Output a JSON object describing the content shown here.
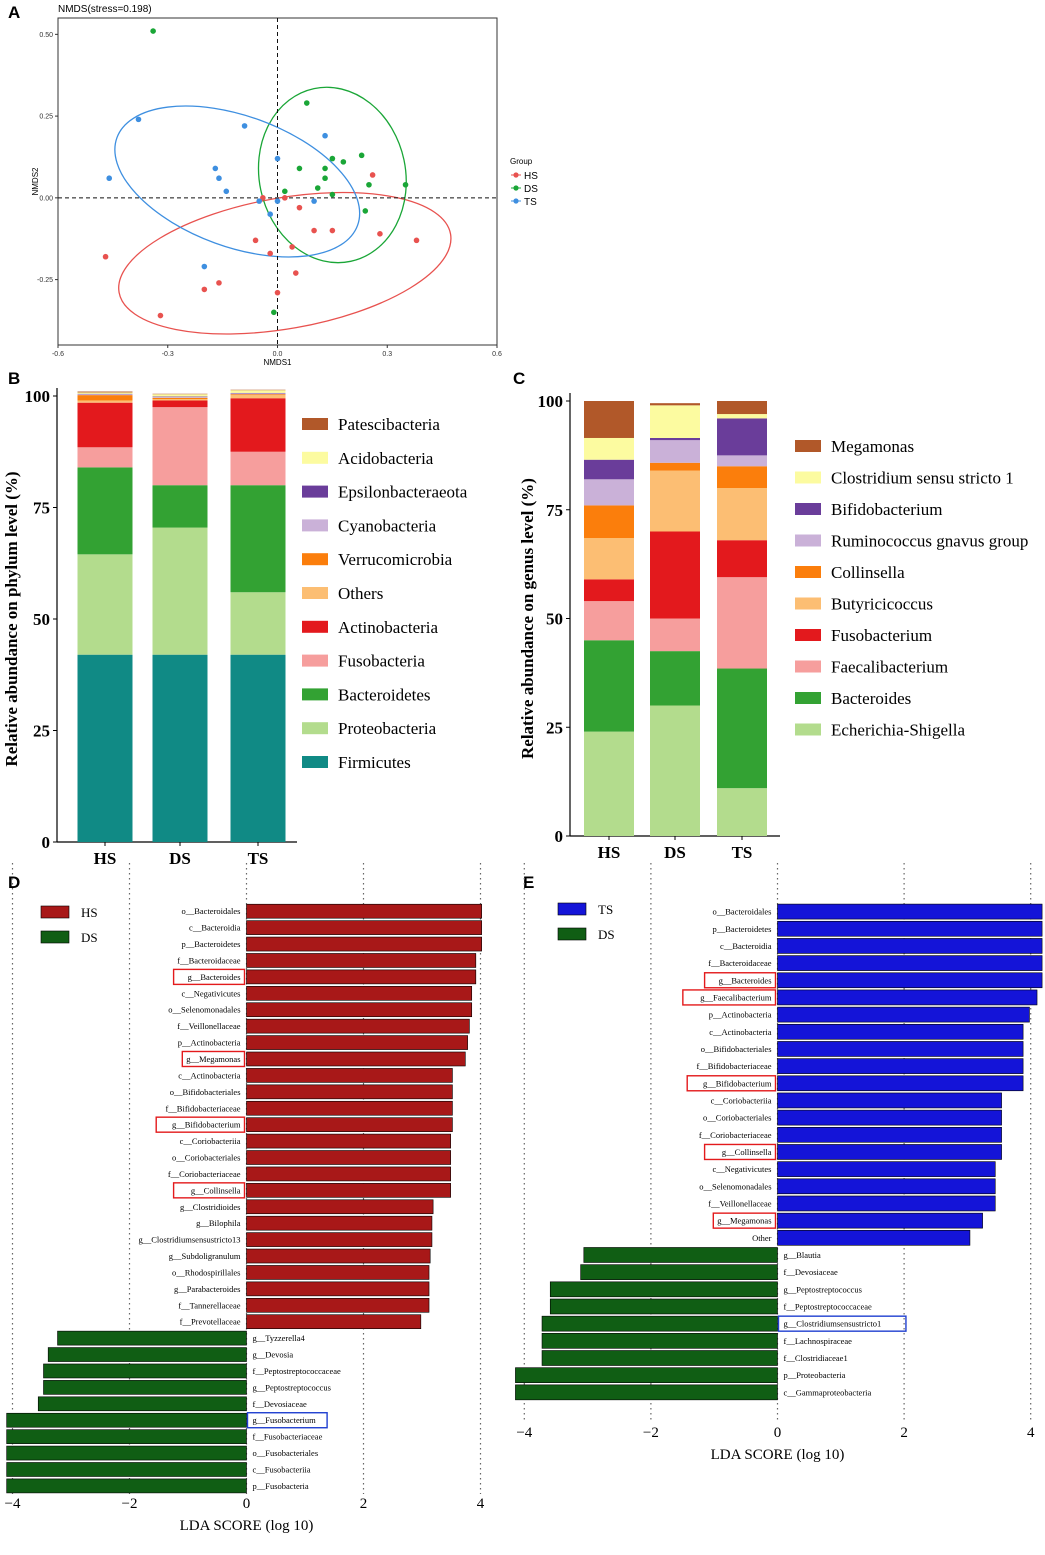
{
  "chart_data": [
    {
      "panel": "A",
      "type": "scatter",
      "title": "NMDS(stress=0.198)",
      "xlabel": "NMDS1",
      "ylabel": "NMDS2",
      "xlim": [
        -0.6,
        0.6
      ],
      "ylim": [
        -0.45,
        0.55
      ],
      "xticks": [
        "-0.6",
        "-0.3",
        "0.0",
        "0.3",
        "0.6"
      ],
      "yticks": [
        "-0.25",
        "0.00",
        "0.25",
        "0.50"
      ],
      "legend_title": "Group",
      "series": [
        {
          "name": "HS",
          "color": "#e8524f",
          "points": [
            [
              -0.47,
              -0.18
            ],
            [
              -0.32,
              -0.36
            ],
            [
              -0.2,
              -0.28
            ],
            [
              -0.16,
              -0.26
            ],
            [
              -0.06,
              -0.13
            ],
            [
              -0.04,
              0.0
            ],
            [
              -0.02,
              -0.17
            ],
            [
              0.02,
              0.0
            ],
            [
              0.04,
              -0.15
            ],
            [
              0.06,
              -0.03
            ],
            [
              0.05,
              -0.23
            ],
            [
              0.1,
              -0.1
            ],
            [
              0.15,
              -0.1
            ],
            [
              0.26,
              0.07
            ],
            [
              0.28,
              -0.11
            ],
            [
              0.38,
              -0.13
            ],
            [
              0.0,
              -0.29
            ]
          ]
        },
        {
          "name": "DS",
          "color": "#1aa637",
          "points": [
            [
              -0.34,
              0.51
            ],
            [
              0.08,
              0.29
            ],
            [
              0.13,
              0.09
            ],
            [
              0.15,
              0.12
            ],
            [
              0.06,
              0.09
            ],
            [
              0.11,
              0.03
            ],
            [
              0.15,
              0.01
            ],
            [
              0.18,
              0.11
            ],
            [
              0.25,
              0.04
            ],
            [
              0.23,
              0.13
            ],
            [
              0.24,
              -0.04
            ],
            [
              0.35,
              0.04
            ],
            [
              0.13,
              0.06
            ],
            [
              0.02,
              0.02
            ],
            [
              -0.01,
              -0.35
            ]
          ]
        },
        {
          "name": "TS",
          "color": "#3e8fe0",
          "points": [
            [
              -0.46,
              0.06
            ],
            [
              -0.38,
              0.24
            ],
            [
              -0.17,
              0.09
            ],
            [
              -0.16,
              0.06
            ],
            [
              -0.14,
              0.02
            ],
            [
              -0.09,
              0.22
            ],
            [
              -0.05,
              -0.01
            ],
            [
              0.0,
              0.12
            ],
            [
              0.0,
              -0.01
            ],
            [
              -0.02,
              -0.05
            ],
            [
              0.13,
              0.19
            ],
            [
              0.1,
              -0.01
            ],
            [
              -0.2,
              -0.21
            ]
          ]
        }
      ]
    },
    {
      "panel": "B",
      "type": "bar",
      "stacked": true,
      "ylabel": "Relative abundance on phylum level (%)",
      "categories": [
        "HS",
        "DS",
        "TS"
      ],
      "yticks": [
        "0",
        "25",
        "50",
        "75",
        "100"
      ],
      "ylim": [
        0,
        100
      ],
      "series": [
        {
          "name": "Firmicutes",
          "color": "#108a85",
          "values": [
            42,
            42,
            42
          ]
        },
        {
          "name": "Proteobacteria",
          "color": "#b3dc8d",
          "values": [
            22.5,
            28.5,
            14
          ]
        },
        {
          "name": "Bacteroidetes",
          "color": "#33a233",
          "values": [
            19.5,
            9.5,
            24
          ]
        },
        {
          "name": "Fusobacteria",
          "color": "#f69e9d",
          "values": [
            4.5,
            17.5,
            7.5
          ]
        },
        {
          "name": "Actinobacteria",
          "color": "#e3191d",
          "values": [
            10,
            1.5,
            12
          ]
        },
        {
          "name": "Others",
          "color": "#fcbe73",
          "values": [
            0.5,
            0.3,
            0.7
          ]
        },
        {
          "name": "Verrucomicrobia",
          "color": "#fb7e0c",
          "values": [
            1.2,
            0.3,
            0.2
          ]
        },
        {
          "name": "Cyanobacteria",
          "color": "#cab1d8",
          "values": [
            0.2,
            0.2,
            0.2
          ]
        },
        {
          "name": "Epsilonbacteraeota",
          "color": "#6a3d9a",
          "values": [
            0.1,
            0.1,
            0.1
          ]
        },
        {
          "name": "Acidobacteria",
          "color": "#fcfba0",
          "values": [
            0.3,
            0.5,
            0.6
          ]
        },
        {
          "name": "Patescibacteria",
          "color": "#b15829",
          "values": [
            0.2,
            0.1,
            0.1
          ]
        }
      ],
      "legend_order": [
        "Patescibacteria",
        "Acidobacteria",
        "Epsilonbacteraeota",
        "Cyanobacteria",
        "Verrucomicrobia",
        "Others",
        "Actinobacteria",
        "Fusobacteria",
        "Bacteroidetes",
        "Proteobacteria",
        "Firmicutes"
      ]
    },
    {
      "panel": "C",
      "type": "bar",
      "stacked": true,
      "ylabel": "Relative abundance on genus level (%)",
      "categories": [
        "HS",
        "DS",
        "TS"
      ],
      "yticks": [
        "0",
        "25",
        "50",
        "75",
        "100"
      ],
      "ylim": [
        0,
        100
      ],
      "series": [
        {
          "name": "Echerichia-Shigella",
          "color": "#b3dc8d",
          "values": [
            24,
            30,
            11
          ]
        },
        {
          "name": "Bacteroides",
          "color": "#33a233",
          "values": [
            21,
            12.5,
            27.5
          ]
        },
        {
          "name": "Faecalibacterium",
          "color": "#f69e9d",
          "values": [
            9,
            7.5,
            21
          ]
        },
        {
          "name": "Fusobacterium",
          "color": "#e3191d",
          "values": [
            5,
            20,
            8.5
          ]
        },
        {
          "name": "Butyricicoccus",
          "color": "#fcbe73",
          "values": [
            9.5,
            14,
            12
          ]
        },
        {
          "name": "Collinsella",
          "color": "#fb7e0c",
          "values": [
            7.5,
            1.8,
            5
          ]
        },
        {
          "name": "Ruminococcus gnavus group",
          "color": "#cab1d8",
          "values": [
            6,
            5.2,
            2.5
          ]
        },
        {
          "name": "Bifidobacterium",
          "color": "#6a3d9a",
          "values": [
            4.5,
            0.5,
            8.5
          ]
        },
        {
          "name": "Clostridium sensu stricto 1",
          "color": "#fcfba0",
          "values": [
            5,
            7.5,
            1
          ]
        },
        {
          "name": "Megamonas",
          "color": "#b15829",
          "values": [
            8.5,
            0.5,
            3
          ]
        }
      ],
      "legend_order": [
        "Megamonas",
        "Clostridium sensu stricto 1",
        "Bifidobacterium",
        "Ruminococcus gnavus group",
        "Collinsella",
        "Butyricicoccus",
        "Fusobacterium",
        "Faecalibacterium",
        "Bacteroides",
        "Echerichia-Shigella"
      ]
    },
    {
      "panel": "D",
      "type": "bar",
      "orientation": "horizontal",
      "xlabel": "LDA SCORE (log 10)",
      "xticks": [
        -4,
        -2,
        0,
        2,
        4
      ],
      "xlim": [
        -4.2,
        4.2
      ],
      "legend": [
        {
          "name": "HS",
          "color": "#a81818"
        },
        {
          "name": "DS",
          "color": "#105e14"
        }
      ],
      "bars": [
        {
          "label": "o__Bacteroidales",
          "value": 4.02,
          "group": "HS"
        },
        {
          "label": "c__Bacteroidia",
          "value": 4.02,
          "group": "HS"
        },
        {
          "label": "p__Bacteroidetes",
          "value": 4.02,
          "group": "HS"
        },
        {
          "label": "f__Bacteroidaceae",
          "value": 3.92,
          "group": "HS"
        },
        {
          "label": "g__Bacteroides",
          "value": 3.92,
          "group": "HS",
          "box": "red"
        },
        {
          "label": "c__Negativicutes",
          "value": 3.85,
          "group": "HS"
        },
        {
          "label": "o__Selenomonadales",
          "value": 3.85,
          "group": "HS"
        },
        {
          "label": "f__Veillonellaceae",
          "value": 3.81,
          "group": "HS"
        },
        {
          "label": "p__Actinobacteria",
          "value": 3.78,
          "group": "HS"
        },
        {
          "label": "g__Megamonas",
          "value": 3.74,
          "group": "HS",
          "box": "red"
        },
        {
          "label": "c__Actinobacteria",
          "value": 3.52,
          "group": "HS"
        },
        {
          "label": "o__Bifidobacteriales",
          "value": 3.52,
          "group": "HS"
        },
        {
          "label": "f__Bifidobacteriaceae",
          "value": 3.52,
          "group": "HS"
        },
        {
          "label": "g__Bifidobacterium",
          "value": 3.52,
          "group": "HS",
          "box": "red"
        },
        {
          "label": "c__Coriobacteriia",
          "value": 3.49,
          "group": "HS"
        },
        {
          "label": "o__Coriobacteriales",
          "value": 3.49,
          "group": "HS"
        },
        {
          "label": "f__Coriobacteriaceae",
          "value": 3.49,
          "group": "HS"
        },
        {
          "label": "g__Collinsella",
          "value": 3.49,
          "group": "HS",
          "box": "red"
        },
        {
          "label": "g__Clostridioides",
          "value": 3.19,
          "group": "HS"
        },
        {
          "label": "g__Bilophila",
          "value": 3.17,
          "group": "HS"
        },
        {
          "label": "g__Clostridiumsensustricto13",
          "value": 3.17,
          "group": "HS"
        },
        {
          "label": "g__Subdoligranulum",
          "value": 3.14,
          "group": "HS"
        },
        {
          "label": "o__Rhodospirillales",
          "value": 3.12,
          "group": "HS"
        },
        {
          "label": "g__Parabacteroides",
          "value": 3.12,
          "group": "HS"
        },
        {
          "label": "f__Tannerellaceae",
          "value": 3.12,
          "group": "HS"
        },
        {
          "label": "f__Prevotellaceae",
          "value": 2.98,
          "group": "HS"
        },
        {
          "label": "g__Tyzzerella4",
          "value": -3.23,
          "group": "DS"
        },
        {
          "label": "g__Devosia",
          "value": -3.39,
          "group": "DS"
        },
        {
          "label": "f__Peptostreptococcaceae",
          "value": -3.47,
          "group": "DS"
        },
        {
          "label": "g__Peptostreptococcus",
          "value": -3.47,
          "group": "DS"
        },
        {
          "label": "f__Devosiaceae",
          "value": -3.56,
          "group": "DS"
        },
        {
          "label": "g__Fusobacterium",
          "value": -4.1,
          "group": "DS",
          "box": "blue"
        },
        {
          "label": "f__Fusobacteriaceae",
          "value": -4.1,
          "group": "DS"
        },
        {
          "label": "o__Fusobacteriales",
          "value": -4.1,
          "group": "DS"
        },
        {
          "label": "c__Fusobacteriia",
          "value": -4.1,
          "group": "DS"
        },
        {
          "label": "p__Fusobacteria",
          "value": -4.1,
          "group": "DS"
        }
      ]
    },
    {
      "panel": "E",
      "type": "bar",
      "orientation": "horizontal",
      "xlabel": "LDA SCORE (log 10)",
      "xticks": [
        -4,
        -2,
        0,
        2,
        4
      ],
      "xlim": [
        -4.2,
        4.2
      ],
      "legend": [
        {
          "name": "TS",
          "color": "#1414d8"
        },
        {
          "name": "DS",
          "color": "#105e14"
        }
      ],
      "bars": [
        {
          "label": "o__Bacteroidales",
          "value": 4.18,
          "group": "TS"
        },
        {
          "label": "p__Bacteroidetes",
          "value": 4.18,
          "group": "TS"
        },
        {
          "label": "c__Bacteroidia",
          "value": 4.18,
          "group": "TS"
        },
        {
          "label": "f__Bacteroidaceae",
          "value": 4.18,
          "group": "TS"
        },
        {
          "label": "g__Bacteroides",
          "value": 4.18,
          "group": "TS",
          "box": "red"
        },
        {
          "label": "g__Faecalibacterium",
          "value": 4.1,
          "group": "TS",
          "box": "red"
        },
        {
          "label": "p__Actinobacteria",
          "value": 3.98,
          "group": "TS"
        },
        {
          "label": "c__Actinobacteria",
          "value": 3.88,
          "group": "TS"
        },
        {
          "label": "o__Bifidobacteriales",
          "value": 3.88,
          "group": "TS"
        },
        {
          "label": "f__Bifidobacteriaceae",
          "value": 3.88,
          "group": "TS"
        },
        {
          "label": "g__Bifidobacterium",
          "value": 3.88,
          "group": "TS",
          "box": "red"
        },
        {
          "label": "c__Coriobacteriia",
          "value": 3.54,
          "group": "TS"
        },
        {
          "label": "o__Coriobacteriales",
          "value": 3.54,
          "group": "TS"
        },
        {
          "label": "f__Coriobacteriaceae",
          "value": 3.54,
          "group": "TS"
        },
        {
          "label": "g__Collinsella",
          "value": 3.54,
          "group": "TS",
          "box": "red"
        },
        {
          "label": "c__Negativicutes",
          "value": 3.44,
          "group": "TS"
        },
        {
          "label": "o__Selenomonadales",
          "value": 3.44,
          "group": "TS"
        },
        {
          "label": "f__Veillonellaceae",
          "value": 3.44,
          "group": "TS"
        },
        {
          "label": "g__Megamonas",
          "value": 3.24,
          "group": "TS",
          "box": "red"
        },
        {
          "label": "Other",
          "value": 3.04,
          "group": "TS"
        },
        {
          "label": "g__Blautia",
          "value": -3.06,
          "group": "DS"
        },
        {
          "label": "f__Devosiaceae",
          "value": -3.11,
          "group": "DS"
        },
        {
          "label": "g__Peptostreptococcus",
          "value": -3.59,
          "group": "DS"
        },
        {
          "label": "f__Peptostreptococcaceae",
          "value": -3.59,
          "group": "DS"
        },
        {
          "label": "g__Clostridiumsensustricto1",
          "value": -3.72,
          "group": "DS",
          "box": "blue"
        },
        {
          "label": "f__Lachnospiraceae",
          "value": -3.72,
          "group": "DS"
        },
        {
          "label": "f__Clostridiaceae1",
          "value": -3.72,
          "group": "DS"
        },
        {
          "label": "p__Proteobacteria",
          "value": -4.14,
          "group": "DS"
        },
        {
          "label": "c__Gammaproteobacteria",
          "value": -4.14,
          "group": "DS"
        }
      ]
    }
  ],
  "panels": {
    "a": "A",
    "b": "B",
    "c": "C",
    "d": "D",
    "e": "E"
  }
}
